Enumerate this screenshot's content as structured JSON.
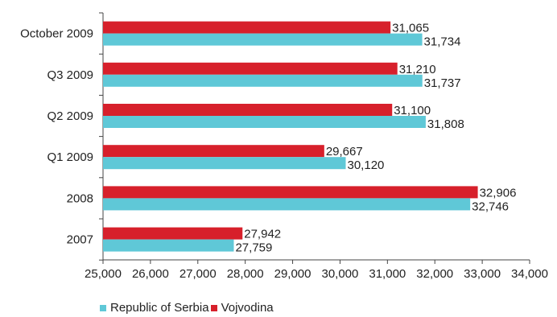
{
  "chart_data": {
    "type": "bar",
    "orientation": "horizontal",
    "categories": [
      "October 2009",
      "Q3 2009",
      "Q2 2009",
      "Q1 2009",
      "2008",
      "2007"
    ],
    "series": [
      {
        "name": "Vojvodina",
        "color": "#d7202b",
        "values": [
          31065,
          31210,
          31100,
          29667,
          32906,
          27942
        ]
      },
      {
        "name": "Republic of Serbia",
        "color": "#5fc8d7",
        "values": [
          31734,
          31737,
          31808,
          30120,
          32746,
          27759
        ]
      }
    ],
    "value_labels": {
      "Vojvodina": [
        "31,065",
        "31,210",
        "31,100",
        "29,667",
        "32,906",
        "27,942"
      ],
      "Republic of Serbia": [
        "31,734",
        "31,737",
        "31,808",
        "30,120",
        "32,746",
        "27,759"
      ]
    },
    "xlim": [
      25000,
      34000
    ],
    "x_ticks": [
      25000,
      26000,
      27000,
      28000,
      29000,
      30000,
      31000,
      32000,
      33000,
      34000
    ],
    "x_tick_labels": [
      "25,000",
      "26,000",
      "27,000",
      "28,000",
      "29,000",
      "30,000",
      "31,000",
      "32,000",
      "33,000",
      "34,000"
    ],
    "grid": false,
    "legend_position": "bottom-left",
    "legend_order": [
      "Republic of Serbia",
      "Vojvodina"
    ]
  }
}
